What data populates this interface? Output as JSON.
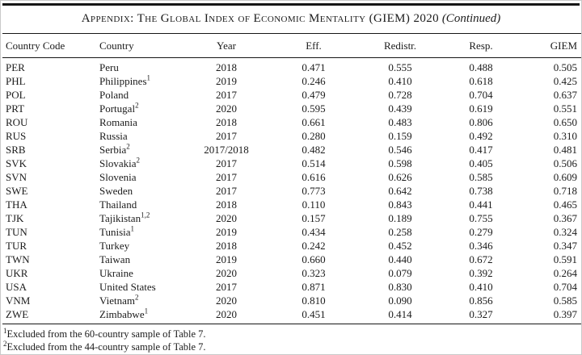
{
  "page": {
    "title_main": "Appendix: The Global Index of Economic Mentality (GIEM) 2020",
    "title_continued": "(Continued)"
  },
  "table": {
    "columns": [
      "Country Code",
      "Country",
      "Year",
      "Eff.",
      "Redistr.",
      "Resp.",
      "GIEM"
    ],
    "rows": [
      {
        "code": "PER",
        "country": "Peru",
        "country_sup": "",
        "year": "2018",
        "eff": "0.471",
        "redistr": "0.555",
        "resp": "0.488",
        "giem": "0.505"
      },
      {
        "code": "PHL",
        "country": "Philippines",
        "country_sup": "1",
        "year": "2019",
        "eff": "0.246",
        "redistr": "0.410",
        "resp": "0.618",
        "giem": "0.425"
      },
      {
        "code": "POL",
        "country": "Poland",
        "country_sup": "",
        "year": "2017",
        "eff": "0.479",
        "redistr": "0.728",
        "resp": "0.704",
        "giem": "0.637"
      },
      {
        "code": "PRT",
        "country": "Portugal",
        "country_sup": "2",
        "year": "2020",
        "eff": "0.595",
        "redistr": "0.439",
        "resp": "0.619",
        "giem": "0.551"
      },
      {
        "code": "ROU",
        "country": "Romania",
        "country_sup": "",
        "year": "2018",
        "eff": "0.661",
        "redistr": "0.483",
        "resp": "0.806",
        "giem": "0.650"
      },
      {
        "code": "RUS",
        "country": "Russia",
        "country_sup": "",
        "year": "2017",
        "eff": "0.280",
        "redistr": "0.159",
        "resp": "0.492",
        "giem": "0.310"
      },
      {
        "code": "SRB",
        "country": "Serbia",
        "country_sup": "2",
        "year": "2017/2018",
        "eff": "0.482",
        "redistr": "0.546",
        "resp": "0.417",
        "giem": "0.481"
      },
      {
        "code": "SVK",
        "country": "Slovakia",
        "country_sup": "2",
        "year": "2017",
        "eff": "0.514",
        "redistr": "0.598",
        "resp": "0.405",
        "giem": "0.506"
      },
      {
        "code": "SVN",
        "country": "Slovenia",
        "country_sup": "",
        "year": "2017",
        "eff": "0.616",
        "redistr": "0.626",
        "resp": "0.585",
        "giem": "0.609"
      },
      {
        "code": "SWE",
        "country": "Sweden",
        "country_sup": "",
        "year": "2017",
        "eff": "0.773",
        "redistr": "0.642",
        "resp": "0.738",
        "giem": "0.718"
      },
      {
        "code": "THA",
        "country": "Thailand",
        "country_sup": "",
        "year": "2018",
        "eff": "0.110",
        "redistr": "0.843",
        "resp": "0.441",
        "giem": "0.465"
      },
      {
        "code": "TJK",
        "country": "Tajikistan",
        "country_sup": "1,2",
        "year": "2020",
        "eff": "0.157",
        "redistr": "0.189",
        "resp": "0.755",
        "giem": "0.367"
      },
      {
        "code": "TUN",
        "country": "Tunisia",
        "country_sup": "1",
        "year": "2019",
        "eff": "0.434",
        "redistr": "0.258",
        "resp": "0.279",
        "giem": "0.324"
      },
      {
        "code": "TUR",
        "country": "Turkey",
        "country_sup": "",
        "year": "2018",
        "eff": "0.242",
        "redistr": "0.452",
        "resp": "0.346",
        "giem": "0.347"
      },
      {
        "code": "TWN",
        "country": "Taiwan",
        "country_sup": "",
        "year": "2019",
        "eff": "0.660",
        "redistr": "0.440",
        "resp": "0.672",
        "giem": "0.591"
      },
      {
        "code": "UKR",
        "country": "Ukraine",
        "country_sup": "",
        "year": "2020",
        "eff": "0.323",
        "redistr": "0.079",
        "resp": "0.392",
        "giem": "0.264"
      },
      {
        "code": "USA",
        "country": "United States",
        "country_sup": "",
        "year": "2017",
        "eff": "0.871",
        "redistr": "0.830",
        "resp": "0.410",
        "giem": "0.704"
      },
      {
        "code": "VNM",
        "country": "Vietnam",
        "country_sup": "2",
        "year": "2020",
        "eff": "0.810",
        "redistr": "0.090",
        "resp": "0.856",
        "giem": "0.585"
      },
      {
        "code": "ZWE",
        "country": "Zimbabwe",
        "country_sup": "1",
        "year": "2020",
        "eff": "0.451",
        "redistr": "0.414",
        "resp": "0.327",
        "giem": "0.397"
      }
    ]
  },
  "footnotes": [
    {
      "sup": "1",
      "text": "Excluded from the 60-country sample of Table 7."
    },
    {
      "sup": "2",
      "text": "Excluded from the 44-country sample of Table 7."
    }
  ]
}
